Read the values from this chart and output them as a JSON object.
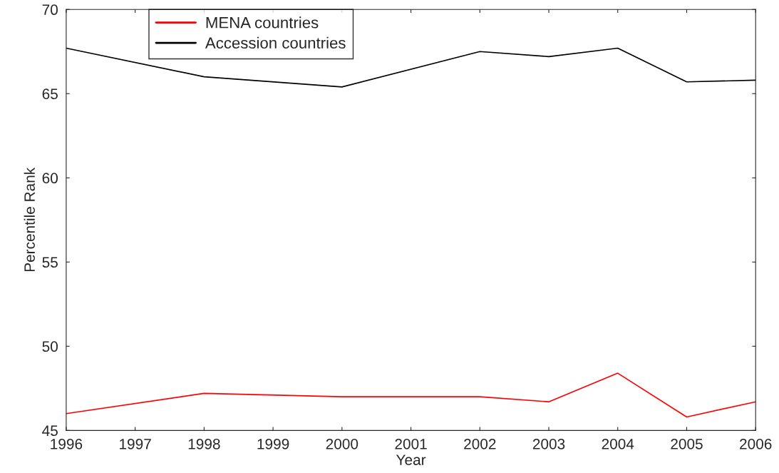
{
  "chart_data": {
    "type": "line",
    "xlabel": "Year",
    "ylabel": "Percentile Rank",
    "series": [
      {
        "name": "MENA countries",
        "color": "#ff0000",
        "x": [
          1996,
          1998,
          2000,
          2002,
          2003,
          2004,
          2005,
          2006
        ],
        "values": [
          46.0,
          47.2,
          47.0,
          47.0,
          46.7,
          48.4,
          45.8,
          46.7
        ]
      },
      {
        "name": "Accession countries",
        "color": "#000000",
        "x": [
          1996,
          1998,
          2000,
          2002,
          2003,
          2004,
          2005,
          2006
        ],
        "values": [
          67.7,
          66.0,
          65.4,
          67.5,
          67.2,
          67.7,
          65.7,
          65.8
        ]
      }
    ],
    "xlim": [
      1996,
      2006
    ],
    "xticks": [
      1996,
      1997,
      1998,
      1999,
      2000,
      2001,
      2002,
      2003,
      2004,
      2005,
      2006
    ],
    "ylim": [
      45,
      70
    ],
    "yticks": [
      45,
      50,
      55,
      60,
      65,
      70
    ],
    "grid": false,
    "legend": "top left",
    "marker": "none",
    "line_style": "solid"
  }
}
